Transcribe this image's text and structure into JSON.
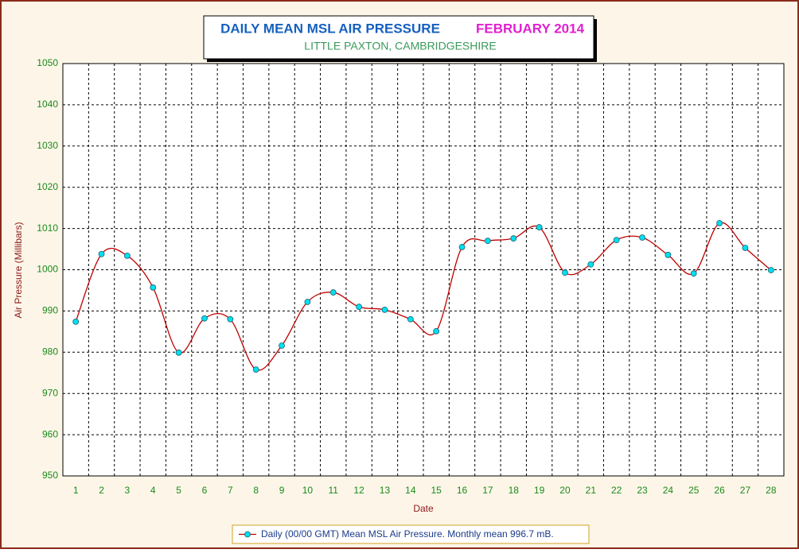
{
  "chart_data": {
    "type": "line",
    "title": "DAILY MEAN MSL AIR PRESSURE",
    "title_right": "FEBRUARY 2014",
    "subtitle": "LITTLE PAXTON, CAMBRIDGESHIRE",
    "y_label": "Air Pressure (Millibars)",
    "x_label": "Date",
    "categories": [
      "1",
      "2",
      "3",
      "4",
      "5",
      "6",
      "7",
      "8",
      "9",
      "10",
      "11",
      "12",
      "13",
      "14",
      "15",
      "16",
      "17",
      "18",
      "19",
      "20",
      "21",
      "22",
      "23",
      "24",
      "25",
      "26",
      "27",
      "28"
    ],
    "series": [
      {
        "name": "Daily (00/00 GMT) Mean MSL Air Pressure. Monthly mean 996.7 mB.",
        "color": "#c00000",
        "values": [
          987.4,
          1003.8,
          1003.4,
          995.7,
          979.9,
          988.2,
          988.0,
          975.8,
          981.6,
          992.2,
          994.5,
          991.0,
          990.3,
          988.0,
          985.1,
          1005.5,
          1007.0,
          1007.6,
          1010.3,
          999.3,
          1001.3,
          1007.2,
          1007.8,
          1003.6,
          999.1,
          1011.3,
          1005.3,
          999.9
        ]
      }
    ],
    "ylim": [
      950,
      1050
    ],
    "yticks": [
      950,
      960,
      970,
      980,
      990,
      1000,
      1010,
      1020,
      1030,
      1040,
      1050
    ],
    "grid": true,
    "smooth": true,
    "marker_color": "#00e0f0"
  }
}
